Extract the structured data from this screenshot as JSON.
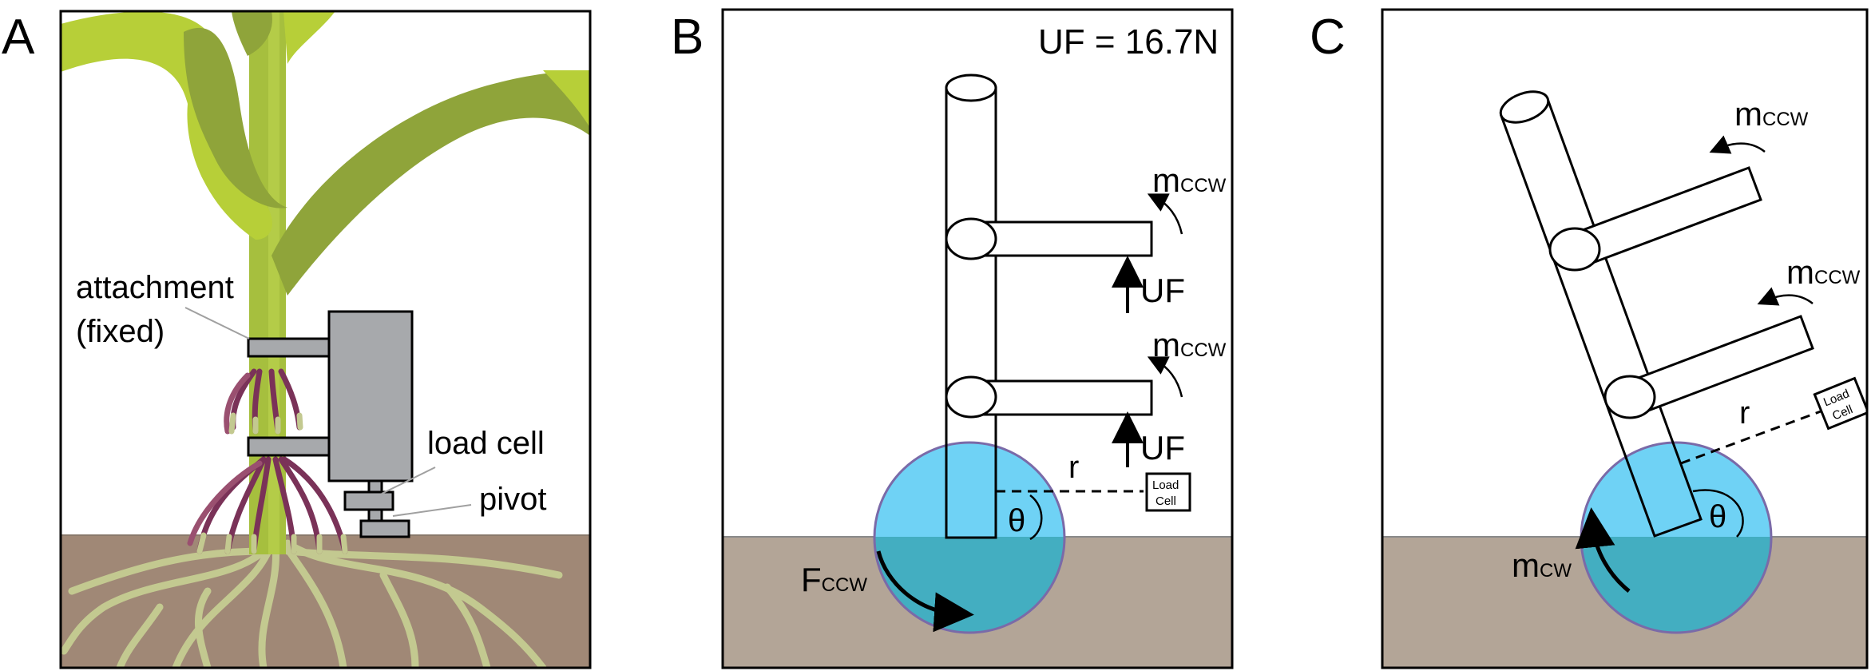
{
  "panel_a": {
    "letter": "A",
    "label_attachment_line1": "attachment",
    "label_attachment_line2": "(fixed)",
    "label_load_cell": "load cell",
    "label_pivot": "pivot"
  },
  "panel_b": {
    "letter": "B",
    "uf_value": "UF = 16.7N",
    "m_upper": "m",
    "m_upper_sub": "CCW",
    "uf_upper": "UF",
    "m_lower": "m",
    "m_lower_sub": "CCW",
    "uf_lower": "UF",
    "r_label": "r",
    "theta": "θ",
    "load_cell_line1": "Load",
    "load_cell_line2": "Cell",
    "f_label": "F",
    "f_sub": "CCW"
  },
  "panel_c": {
    "letter": "C",
    "m_upper": "m",
    "m_upper_sub": "CCW",
    "m_lower": "m",
    "m_lower_sub": "CCW",
    "r_label": "r",
    "theta": "θ",
    "load_cell_line1": "Load",
    "load_cell_line2": "Cell",
    "m_cw": "m",
    "m_cw_sub": "CW"
  },
  "colors": {
    "soil_a": "#a08876",
    "soil_bc": "#b3a597",
    "pivot_circle": "#6fd2f5",
    "pivot_circle_soil": "#43aec1",
    "leaf_light": "#b7cf38",
    "leaf_dark": "#8fa43a",
    "stem": "#a6bf3e",
    "root": "#c3c990",
    "device": "#a7a9ac",
    "brace_root": "#7a3258"
  }
}
